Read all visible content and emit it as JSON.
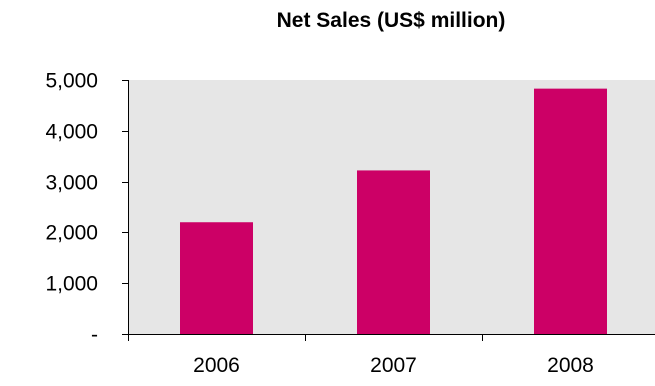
{
  "chart_data": {
    "type": "bar",
    "title": "Net Sales (US$ million)",
    "xlabel": "",
    "ylabel": "",
    "categories": [
      "2006",
      "2007",
      "2008"
    ],
    "values": [
      2200,
      3220,
      4830
    ],
    "ylim": [
      0,
      5000
    ],
    "yticks": [
      {
        "value": 0,
        "label": "-"
      },
      {
        "value": 1000,
        "label": "1,000"
      },
      {
        "value": 2000,
        "label": "2,000"
      },
      {
        "value": 3000,
        "label": "3,000"
      },
      {
        "value": 4000,
        "label": "4,000"
      },
      {
        "value": 5000,
        "label": "5,000"
      }
    ],
    "grid": false,
    "legend": "none",
    "colors": {
      "bar": "#cc0066",
      "plot_background": "#e6e6e6",
      "axis": "#000000"
    }
  }
}
